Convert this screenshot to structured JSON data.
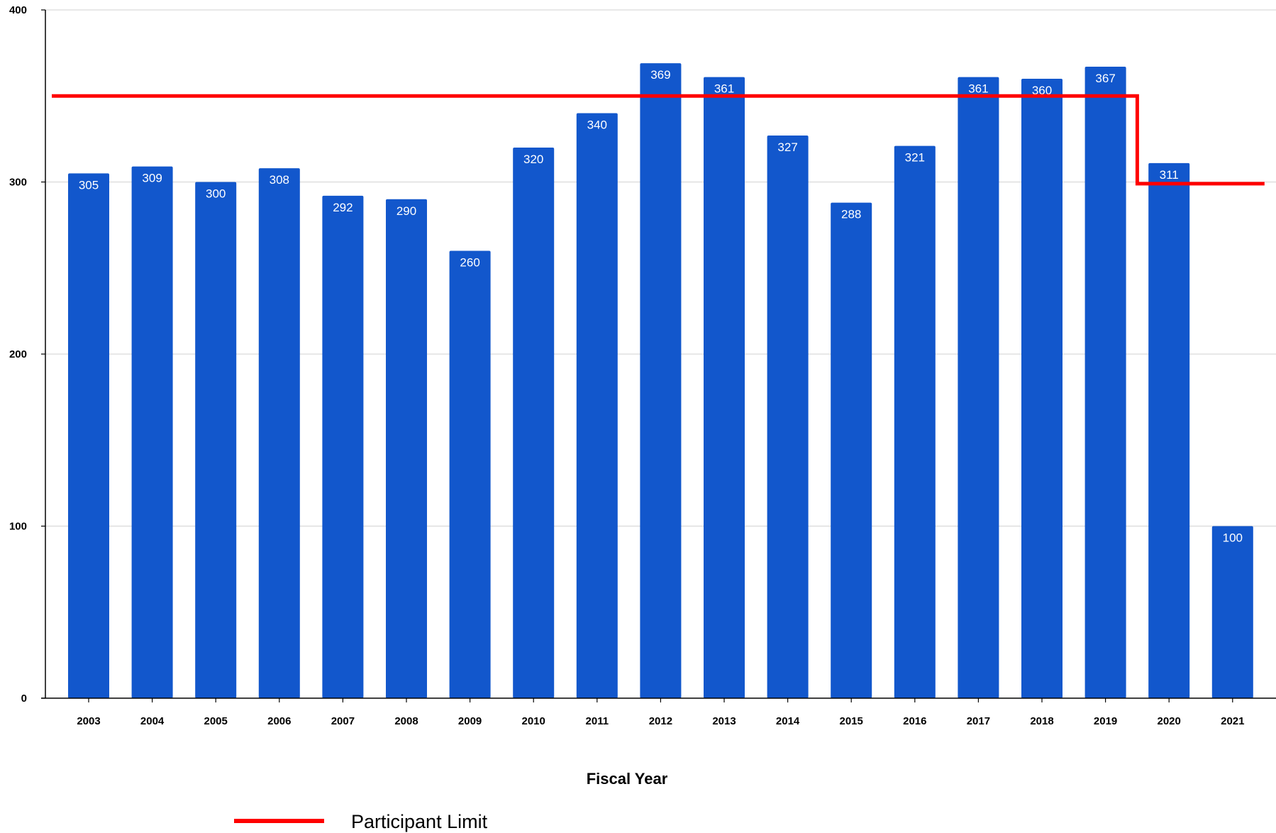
{
  "chart_data": {
    "type": "bar",
    "title": "",
    "xlabel": "Fiscal Year",
    "ylabel": "",
    "ylim": [
      0,
      400
    ],
    "yticks": [
      0,
      100,
      200,
      300,
      400
    ],
    "grid": true,
    "categories": [
      "2003",
      "2004",
      "2005",
      "2006",
      "2007",
      "2008",
      "2009",
      "2010",
      "2011",
      "2012",
      "2013",
      "2014",
      "2015",
      "2016",
      "2017",
      "2018",
      "2019",
      "2020",
      "2021"
    ],
    "values": [
      305,
      309,
      300,
      308,
      292,
      290,
      260,
      320,
      340,
      369,
      361,
      327,
      288,
      321,
      361,
      360,
      367,
      311,
      100
    ],
    "bar_color": "#1257cc",
    "data_labels": true,
    "limit_line": {
      "name": "Participant Limit",
      "color": "#ff0000",
      "segments": [
        {
          "from": "2003",
          "to": "2019",
          "value": 350
        },
        {
          "from": "2020",
          "to": "2021",
          "value": 299
        }
      ]
    },
    "legend": {
      "position": "bottom-left",
      "entries": [
        {
          "label": "Participant Limit",
          "color": "#ff0000",
          "marker": "line"
        }
      ]
    }
  }
}
